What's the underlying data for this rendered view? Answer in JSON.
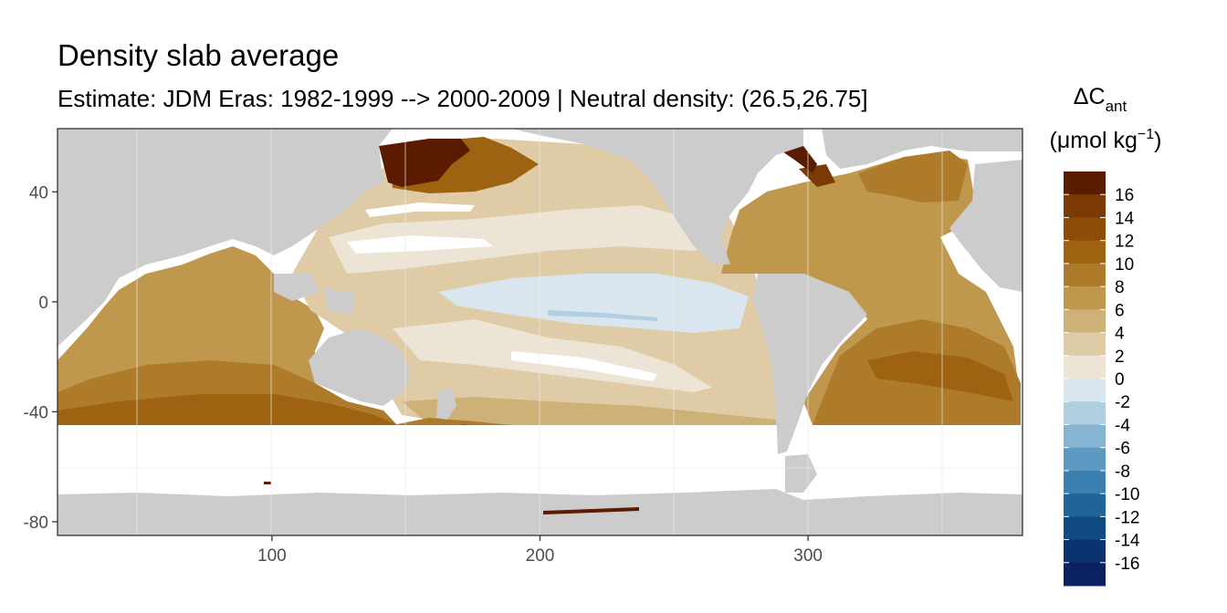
{
  "title": "Density slab average",
  "subtitle": "Estimate: JDM Eras: 1982-1999 --> 2000-2009 | Neutral density: (26.5,26.75]",
  "x_axis": {
    "ticks": [
      100,
      200,
      300
    ],
    "range": [
      20,
      380
    ]
  },
  "y_axis": {
    "ticks": [
      40,
      0,
      -40,
      -80
    ],
    "range": [
      -85,
      63
    ]
  },
  "legend": {
    "title_main": "ΔC",
    "title_sub": "ant",
    "title_unit_open": "(μmol kg",
    "title_unit_exp": "−1",
    "title_unit_close": ")",
    "labels": [
      "16",
      "14",
      "12",
      "10",
      "8",
      "6",
      "4",
      "2",
      "0",
      "-2",
      "-4",
      "-6",
      "-8",
      "-10",
      "-12",
      "-14",
      "-16"
    ],
    "colors": [
      "#5a1b00",
      "#7b3a03",
      "#8d4d06",
      "#9d6310",
      "#ae7b2b",
      "#bf974d",
      "#ceb177",
      "#dfcba6",
      "#ece4d4",
      "#d9e6ee",
      "#b0cfe0",
      "#85b5d2",
      "#5c9ac2",
      "#3a7fb0",
      "#1f6399",
      "#0f4a82",
      "#0b3370",
      "#0a2061"
    ]
  },
  "colors": {
    "land": "#cccccc",
    "background": "#ffffff",
    "gridline": "#ebebeb",
    "panel_border": "#333333"
  }
}
